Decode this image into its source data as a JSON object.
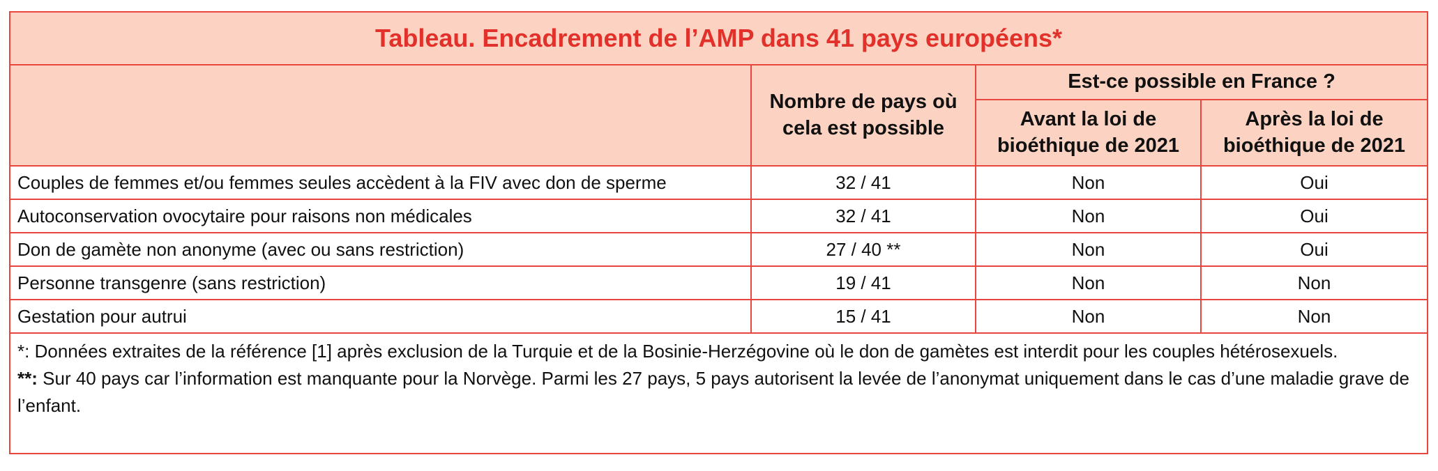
{
  "table": {
    "title": "Tableau. Encadrement de l’AMP dans 41 pays européens*",
    "header": {
      "count": "Nombre de pays où cela est possible",
      "france": "Est-ce possible en France ?",
      "before": "Avant la loi de bioéthique de 2021",
      "after": "Après la loi de bioéthique de 2021"
    },
    "rows": [
      [
        "Couples de femmes et/ou femmes seules accèdent à la FIV avec don de sperme",
        "32 / 41",
        "Non",
        "Oui"
      ],
      [
        "Autoconservation ovocytaire pour raisons non médicales",
        "32 / 41",
        "Non",
        "Oui"
      ],
      [
        "Don de gamète non anonyme (avec ou sans restriction)",
        "27 / 40 **",
        "Non",
        "Oui"
      ],
      [
        "Personne transgenre (sans restriction)",
        "19 / 41",
        "Non",
        "Non"
      ],
      [
        "Gestation pour autrui",
        "15 / 41",
        "Non",
        "Non"
      ]
    ],
    "footnotes": [
      {
        "marker": "*:",
        "text": "Données extraites de la référence [1] après exclusion de la Turquie et de la Bosinie-Herzégovine où le don de gamètes est interdit pour les couples hétérosexuels."
      },
      {
        "marker": "**:",
        "text": "Sur 40 pays car l’information est manquante pour la Norvège. Parmi les 27 pays, 5 pays autorisent la levée de l’anonymat uniquement dans le cas d’une maladie grave de l’enfant."
      }
    ]
  }
}
